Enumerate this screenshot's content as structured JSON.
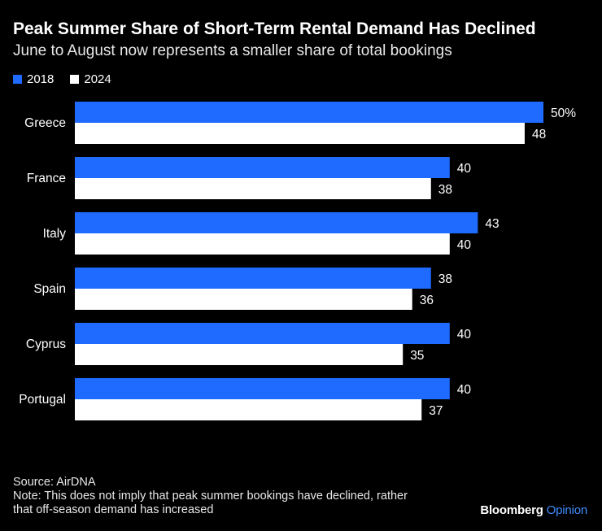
{
  "title": "Peak Summer Share of Short-Term Rental Demand Has Declined",
  "subtitle": "June to August now represents a smaller share of total bookings",
  "legend": {
    "series_2018": "2018",
    "series_2024": "2024"
  },
  "colors": {
    "series_2018": "#1f6bff",
    "series_2024": "#ffffff",
    "background": "#000000"
  },
  "chart_data": {
    "type": "bar",
    "orientation": "horizontal",
    "categories": [
      "Greece",
      "France",
      "Italy",
      "Spain",
      "Cyprus",
      "Portugal"
    ],
    "series": [
      {
        "name": "2018",
        "values": [
          50,
          40,
          43,
          38,
          40,
          40
        ]
      },
      {
        "name": "2024",
        "values": [
          48,
          38,
          40,
          36,
          35,
          37
        ]
      }
    ],
    "value_labels": {
      "2018": [
        "50%",
        "40",
        "43",
        "38",
        "40",
        "40"
      ],
      "2024": [
        "48",
        "38",
        "40",
        "36",
        "35",
        "37"
      ]
    },
    "unit": "%",
    "xlim": [
      0,
      50
    ],
    "grid": false,
    "legend_position": "top-left"
  },
  "footer": {
    "source": "Source: AirDNA",
    "note_line1": "Note: This does not imply that peak summer bookings have declined, rather",
    "note_line2": "that off-season demand has increased"
  },
  "brand": {
    "name": "Bloomberg",
    "section": "Opinion"
  }
}
